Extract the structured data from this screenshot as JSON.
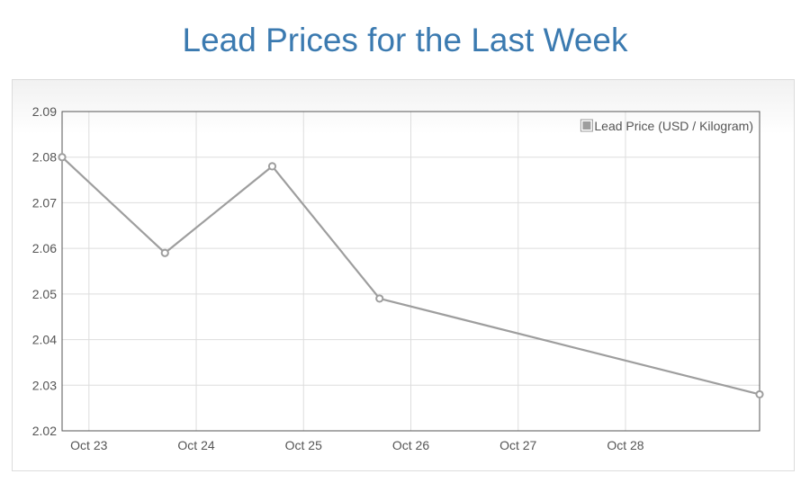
{
  "page": {
    "title": "Lead Prices for the Last Week"
  },
  "chart_data": {
    "type": "line",
    "title": "Lead Prices for the Last Week",
    "xlabel": "",
    "ylabel": "",
    "x_tick_labels": [
      "Oct 23",
      "Oct 24",
      "Oct 25",
      "Oct 26",
      "Oct 27",
      "Oct 28"
    ],
    "y_tick_labels": [
      "2.09",
      "2.08",
      "2.07",
      "2.06",
      "2.05",
      "2.04",
      "2.03",
      "2.02"
    ],
    "ylim": [
      2.02,
      2.09
    ],
    "xlim": [
      "2023-10-22 18:00",
      "2023-10-29 06:00"
    ],
    "grid": true,
    "legend_position": "top-right",
    "series": [
      {
        "name": "Lead Price (USD / Kilogram)",
        "color": "#9e9e9e",
        "points": [
          {
            "x": "2023-10-22 18:00",
            "y": 2.08
          },
          {
            "x": "2023-10-23 17:00",
            "y": 2.059
          },
          {
            "x": "2023-10-24 17:00",
            "y": 2.078
          },
          {
            "x": "2023-10-25 17:00",
            "y": 2.049
          },
          {
            "x": "2023-10-29 06:00",
            "y": 2.028
          }
        ]
      }
    ]
  }
}
